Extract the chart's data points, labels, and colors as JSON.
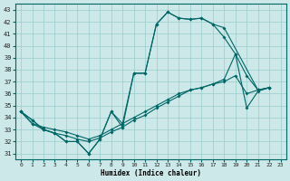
{
  "xlabel": "Humidex (Indice chaleur)",
  "bg_color": "#cce8e8",
  "grid_color": "#99cccc",
  "line_color": "#006666",
  "xlim": [
    -0.5,
    23.5
  ],
  "ylim": [
    30.5,
    43.5
  ],
  "xticks": [
    0,
    1,
    2,
    3,
    4,
    5,
    6,
    7,
    8,
    9,
    10,
    11,
    12,
    13,
    14,
    15,
    16,
    17,
    18,
    19,
    20,
    21,
    22,
    23
  ],
  "yticks": [
    31,
    32,
    33,
    34,
    35,
    36,
    37,
    38,
    39,
    40,
    41,
    42,
    43
  ],
  "series": [
    {
      "x": [
        0,
        1,
        2,
        3,
        4,
        5,
        6,
        7,
        8,
        9,
        10,
        11,
        12,
        13,
        14,
        15,
        16,
        17,
        18,
        19,
        20,
        21,
        22
      ],
      "y": [
        34.5,
        33.8,
        33.0,
        32.7,
        32.0,
        32.0,
        31.0,
        32.2,
        34.5,
        33.5,
        37.7,
        37.7,
        41.8,
        42.8,
        42.3,
        42.2,
        42.3,
        41.8,
        40.7,
        39.3,
        37.5,
        36.3,
        36.5
      ]
    },
    {
      "x": [
        0,
        1,
        2,
        3,
        4,
        5,
        6,
        7,
        8,
        9,
        10,
        11,
        12,
        13,
        14,
        15,
        16,
        17,
        18,
        21,
        22
      ],
      "y": [
        34.5,
        33.8,
        33.0,
        32.7,
        32.0,
        32.0,
        31.0,
        32.2,
        34.5,
        33.2,
        37.7,
        37.7,
        41.8,
        42.8,
        42.3,
        42.2,
        42.3,
        41.8,
        41.5,
        36.3,
        36.5
      ]
    },
    {
      "x": [
        0,
        1,
        2,
        3,
        4,
        5,
        6,
        7,
        8,
        9,
        10,
        11,
        12,
        13,
        14,
        15,
        16,
        17,
        18,
        19,
        20,
        21,
        22
      ],
      "y": [
        34.5,
        33.5,
        33.2,
        33.0,
        32.8,
        32.5,
        32.2,
        32.5,
        33.0,
        33.5,
        34.0,
        34.5,
        35.0,
        35.5,
        36.0,
        36.3,
        36.5,
        36.8,
        37.0,
        37.5,
        36.0,
        36.3,
        36.5
      ]
    },
    {
      "x": [
        0,
        1,
        2,
        3,
        4,
        5,
        6,
        7,
        8,
        9,
        10,
        11,
        12,
        13,
        14,
        15,
        16,
        17,
        18,
        19,
        20,
        21,
        22
      ],
      "y": [
        34.5,
        33.5,
        33.0,
        32.7,
        32.5,
        32.2,
        32.0,
        32.3,
        32.8,
        33.2,
        33.8,
        34.2,
        34.8,
        35.3,
        35.8,
        36.3,
        36.5,
        36.8,
        37.2,
        39.3,
        34.8,
        36.2,
        36.5
      ]
    }
  ]
}
